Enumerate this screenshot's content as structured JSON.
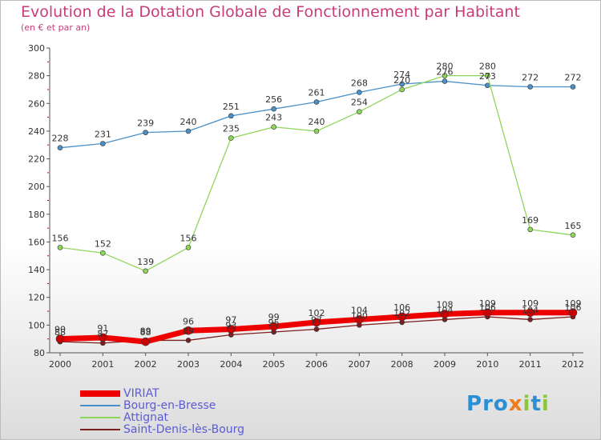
{
  "title": "Evolution de la Dotation Globale de Fonctionnement par Habitant",
  "subtitle": "(en € et par an)",
  "logo": {
    "text": "Proxiti",
    "letters": [
      {
        "ch": "P",
        "color": "#2a8fd6"
      },
      {
        "ch": "r",
        "color": "#2a8fd6"
      },
      {
        "ch": "o",
        "color": "#2a8fd6"
      },
      {
        "ch": "x",
        "color": "#f07c1c"
      },
      {
        "ch": "i",
        "color": "#8cc63f"
      },
      {
        "ch": "t",
        "color": "#2a8fd6"
      },
      {
        "ch": "i",
        "color": "#8cc63f"
      }
    ]
  },
  "chart_data": {
    "type": "line",
    "title": "Evolution de la Dotation Globale de Fonctionnement par Habitant",
    "ylabel": "(en € et par an)",
    "xlabel": "",
    "x": [
      "2000",
      "2001",
      "2002",
      "2003",
      "2004",
      "2005",
      "2006",
      "2007",
      "2008",
      "2009",
      "2010",
      "2011",
      "2012"
    ],
    "ylim": [
      80,
      300
    ],
    "yticks": [
      80,
      100,
      120,
      140,
      160,
      180,
      200,
      220,
      240,
      260,
      280,
      300
    ],
    "grid": false,
    "legend": "bottom-left",
    "series": [
      {
        "name": "VIRIAT",
        "color": "#ee0000",
        "values": [
          90,
          91,
          88,
          96,
          97,
          99,
          102,
          104,
          106,
          108,
          109,
          109,
          109
        ]
      },
      {
        "name": "Bourg-en-Bresse",
        "color": "#4a90c8",
        "values": [
          228,
          231,
          239,
          240,
          251,
          256,
          261,
          268,
          274,
          276,
          273,
          272,
          272
        ]
      },
      {
        "name": "Attignat",
        "color": "#8ed65a",
        "values": [
          156,
          152,
          139,
          156,
          235,
          243,
          240,
          254,
          270,
          280,
          280,
          169,
          165
        ]
      },
      {
        "name": "Saint-Denis-lès-Bourg",
        "color": "#7a2020",
        "values": [
          88,
          87,
          89,
          89,
          93,
          95,
          97,
          100,
          102,
          104,
          106,
          104,
          106
        ]
      }
    ]
  }
}
